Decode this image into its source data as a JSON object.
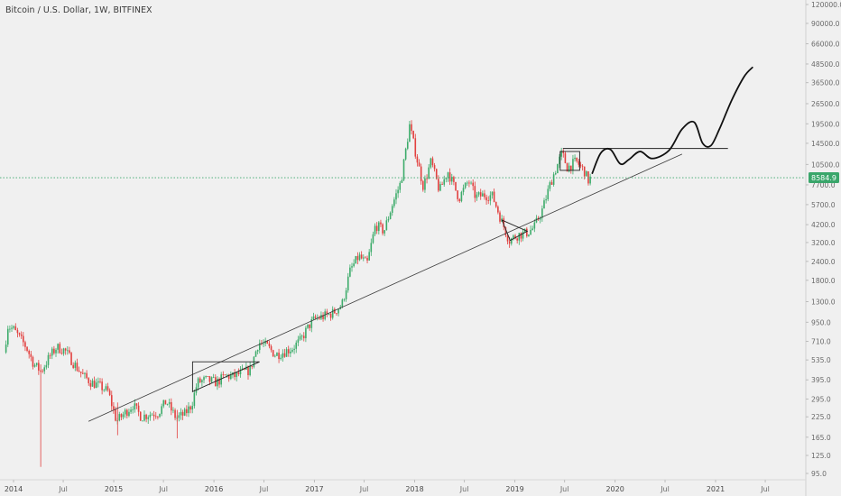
{
  "header": {
    "title": "Bitcoin / U.S. Dollar, 1W, BITFINEX"
  },
  "chart_data": {
    "type": "candlestick",
    "symbol": "BTCUSD",
    "interval": "1W",
    "exchange": "BITFINEX",
    "y_scale": "log",
    "y_ticks": [
      95.0,
      125.0,
      165.0,
      225.0,
      295.0,
      395.0,
      535.0,
      710.0,
      950.0,
      1300.0,
      1800.0,
      2400.0,
      3200.0,
      4200.0,
      5700.0,
      7700.0,
      10500.0,
      14500.0,
      19500.0,
      26500.0,
      36500.0,
      48500.0,
      66000.0,
      90000.0,
      120000.0
    ],
    "x_ticks": [
      {
        "label": "2014",
        "date": "2014-01-01"
      },
      {
        "label": "Jul",
        "date": "2014-07-01"
      },
      {
        "label": "2015",
        "date": "2015-01-01"
      },
      {
        "label": "Jul",
        "date": "2015-07-01"
      },
      {
        "label": "2016",
        "date": "2016-01-01"
      },
      {
        "label": "Jul",
        "date": "2016-07-01"
      },
      {
        "label": "2017",
        "date": "2017-01-01"
      },
      {
        "label": "Jul",
        "date": "2017-07-01"
      },
      {
        "label": "2018",
        "date": "2018-01-01"
      },
      {
        "label": "Jul",
        "date": "2018-07-01"
      },
      {
        "label": "2019",
        "date": "2019-01-01"
      },
      {
        "label": "Jul",
        "date": "2019-07-01"
      },
      {
        "label": "2020",
        "date": "2020-01-01"
      },
      {
        "label": "Jul",
        "date": "2020-07-01"
      },
      {
        "label": "2021",
        "date": "2021-01-01"
      },
      {
        "label": "Jul",
        "date": "2021-07-01"
      }
    ],
    "price_path": [
      [
        "2013-12-01",
        600
      ],
      [
        "2013-12-15",
        900
      ],
      [
        "2014-01-05",
        850
      ],
      [
        "2014-02-20",
        650
      ],
      [
        "2014-03-20",
        500
      ],
      [
        "2014-04-15",
        450
      ],
      [
        "2014-05-15",
        560
      ],
      [
        "2014-06-10",
        650
      ],
      [
        "2014-07-10",
        620
      ],
      [
        "2014-08-15",
        500
      ],
      [
        "2014-09-15",
        420
      ],
      [
        "2014-10-15",
        380
      ],
      [
        "2014-11-15",
        360
      ],
      [
        "2014-12-15",
        330
      ],
      [
        "2015-01-15",
        210
      ],
      [
        "2015-02-15",
        240
      ],
      [
        "2015-03-15",
        270
      ],
      [
        "2015-04-15",
        225
      ],
      [
        "2015-05-15",
        235
      ],
      [
        "2015-06-15",
        240
      ],
      [
        "2015-07-15",
        285
      ],
      [
        "2015-08-20",
        220
      ],
      [
        "2015-09-20",
        235
      ],
      [
        "2015-10-15",
        270
      ],
      [
        "2015-11-05",
        380
      ],
      [
        "2015-12-05",
        395
      ],
      [
        "2016-01-15",
        380
      ],
      [
        "2016-02-15",
        420
      ],
      [
        "2016-03-15",
        415
      ],
      [
        "2016-04-15",
        440
      ],
      [
        "2016-05-15",
        460
      ],
      [
        "2016-06-15",
        700
      ],
      [
        "2016-07-15",
        660
      ],
      [
        "2016-08-15",
        580
      ],
      [
        "2016-09-15",
        605
      ],
      [
        "2016-10-15",
        640
      ],
      [
        "2016-11-15",
        720
      ],
      [
        "2016-12-15",
        900
      ],
      [
        "2017-01-05",
        1000
      ],
      [
        "2017-02-15",
        1050
      ],
      [
        "2017-03-15",
        1100
      ],
      [
        "2017-04-15",
        1250
      ],
      [
        "2017-05-15",
        2100
      ],
      [
        "2017-06-15",
        2600
      ],
      [
        "2017-07-15",
        2300
      ],
      [
        "2017-08-15",
        4200
      ],
      [
        "2017-09-15",
        3800
      ],
      [
        "2017-10-15",
        5700
      ],
      [
        "2017-11-15",
        8000
      ],
      [
        "2017-12-17",
        19000
      ],
      [
        "2018-01-15",
        11000
      ],
      [
        "2018-02-05",
        7500
      ],
      [
        "2018-03-05",
        11000
      ],
      [
        "2018-04-05",
        7000
      ],
      [
        "2018-05-05",
        9500
      ],
      [
        "2018-06-15",
        6300
      ],
      [
        "2018-07-20",
        8200
      ],
      [
        "2018-08-15",
        6400
      ],
      [
        "2018-09-15",
        6600
      ],
      [
        "2018-10-15",
        6500
      ],
      [
        "2018-11-20",
        4300
      ],
      [
        "2018-12-15",
        3300
      ],
      [
        "2019-01-15",
        3600
      ],
      [
        "2019-02-15",
        3700
      ],
      [
        "2019-03-15",
        4000
      ],
      [
        "2019-04-15",
        5300
      ],
      [
        "2019-05-15",
        8000
      ],
      [
        "2019-06-25",
        12500
      ],
      [
        "2019-07-15",
        10000
      ],
      [
        "2019-08-15",
        11000
      ],
      [
        "2019-09-15",
        9500
      ],
      [
        "2019-09-28",
        8200
      ],
      [
        "2019-10-05",
        8500
      ]
    ],
    "current_price": 8584.9,
    "current_price_label": "8584.9",
    "annotations": [
      {
        "type": "trendline",
        "from": [
          "2014-10-01",
          210
        ],
        "to": [
          "2020-09-01",
          12300
        ]
      },
      {
        "type": "horizontal_segment",
        "from": [
          "2019-06-25",
          13400
        ],
        "to": [
          "2021-02-15",
          13400
        ]
      },
      {
        "type": "projection_path",
        "points": [
          [
            "2019-10-10",
            9200
          ],
          [
            "2019-11-10",
            12500
          ],
          [
            "2019-12-15",
            13200
          ],
          [
            "2020-01-20",
            10600
          ],
          [
            "2020-02-20",
            11300
          ],
          [
            "2020-04-01",
            12800
          ],
          [
            "2020-05-15",
            11500
          ],
          [
            "2020-07-15",
            13000
          ],
          [
            "2020-09-01",
            18000
          ],
          [
            "2020-10-15",
            20000
          ],
          [
            "2020-11-15",
            14500
          ],
          [
            "2020-12-15",
            14000
          ],
          [
            "2021-01-15",
            18000
          ],
          [
            "2021-03-01",
            28000
          ],
          [
            "2021-04-15",
            40000
          ],
          [
            "2021-05-15",
            46000
          ]
        ]
      },
      {
        "type": "triangle",
        "points": [
          [
            "2015-10-15",
            520
          ],
          [
            "2016-06-15",
            520
          ],
          [
            "2015-10-15",
            330
          ]
        ]
      },
      {
        "type": "triangle",
        "points": [
          [
            "2018-11-15",
            4500
          ],
          [
            "2019-02-15",
            3800
          ],
          [
            "2018-12-15",
            3300
          ]
        ]
      },
      {
        "type": "rectangle",
        "from": [
          "2019-06-15",
          9600
        ],
        "to": [
          "2019-08-25",
          12800
        ]
      }
    ]
  },
  "colors": {
    "background": "#f0f0f0",
    "axis_text": "#6a6a6a",
    "bull": "#3cab6a",
    "bear": "#e2403f",
    "drawing": "#111111",
    "price_line": "#38a66a",
    "price_label_bg": "#3aa66b"
  }
}
